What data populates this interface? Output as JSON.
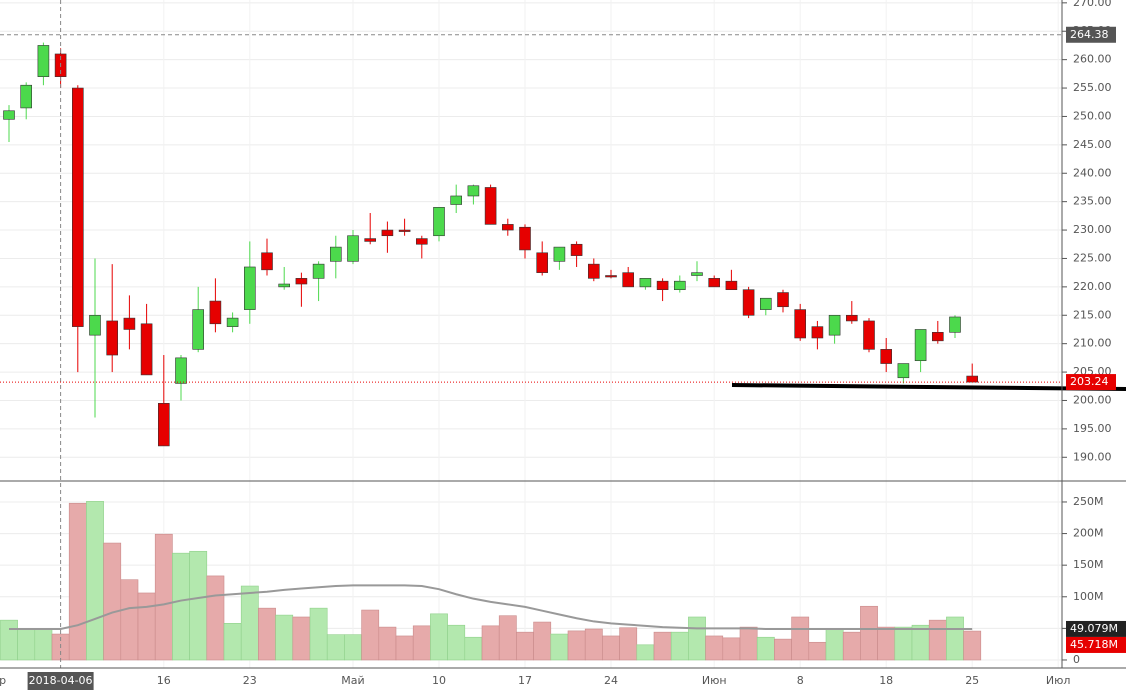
{
  "chart_data": {
    "type": "candlestick",
    "x_labels": [
      {
        "value": -0.8,
        "label": "Апр"
      },
      {
        "value": 9,
        "label": "16"
      },
      {
        "value": 14,
        "label": "23"
      },
      {
        "value": 20,
        "label": "Май"
      },
      {
        "value": 25,
        "label": "10"
      },
      {
        "value": 30,
        "label": "17"
      },
      {
        "value": 35,
        "label": "24"
      },
      {
        "value": 41,
        "label": "Июн"
      },
      {
        "value": 46,
        "label": "8"
      },
      {
        "value": 51,
        "label": "18"
      },
      {
        "value": 56,
        "label": "25"
      },
      {
        "value": 61,
        "label": "Июл"
      }
    ],
    "open": [
      249.5,
      251.5,
      257,
      261,
      255,
      211.5,
      214,
      214.5,
      213.5,
      199.5,
      203,
      209,
      217.5,
      213,
      216,
      226,
      220,
      221.5,
      221.5,
      224.5,
      224.5,
      228.5,
      230,
      230,
      228.5,
      229,
      234.5,
      236,
      237.5,
      231,
      230.5,
      226,
      224.5,
      227.5,
      224,
      222,
      222.5,
      220,
      221,
      219.5,
      222,
      221.5,
      221,
      219.5,
      216,
      219,
      216,
      213,
      211.5,
      215,
      214,
      209,
      204,
      207,
      212,
      212,
      204.3
    ],
    "high": [
      252,
      256,
      263,
      262,
      255.5,
      225,
      224,
      218.5,
      217,
      208,
      208,
      220,
      221.5,
      215.5,
      228,
      228.5,
      223.5,
      222.5,
      224.5,
      229,
      230,
      233,
      231.5,
      232,
      229,
      234,
      238,
      238,
      238,
      232,
      231,
      228,
      227,
      228,
      225,
      223,
      223.5,
      221.5,
      221.5,
      222,
      224.5,
      222,
      223,
      220,
      218,
      219.5,
      217,
      214,
      215,
      217.5,
      214.5,
      211,
      206.5,
      212.5,
      214,
      215,
      206.5
    ],
    "low": [
      245.5,
      249.5,
      255.5,
      255,
      205,
      197,
      205,
      209,
      204.5,
      192,
      200,
      208.5,
      212,
      212,
      213.5,
      222,
      219.5,
      216.5,
      217.5,
      221.5,
      224,
      227.5,
      226,
      229,
      225,
      228,
      233,
      234.5,
      231,
      229,
      225,
      222,
      223,
      223.5,
      221,
      221.5,
      220,
      219.5,
      217.5,
      219,
      221,
      220,
      219.5,
      214.5,
      215,
      215.5,
      210.5,
      209,
      210,
      213.5,
      208.5,
      205,
      203,
      205,
      210,
      211,
      203.24
    ],
    "close": [
      251,
      255.5,
      262.5,
      257,
      213,
      215,
      208,
      212.5,
      204.5,
      192,
      207.5,
      216,
      213.5,
      214.5,
      223.5,
      223,
      220.5,
      220.5,
      224,
      227,
      229,
      228,
      229,
      229.8,
      227.5,
      234,
      236,
      237.8,
      231,
      230,
      226.5,
      222.5,
      227,
      225.5,
      221.5,
      221.8,
      220,
      221.5,
      219.5,
      221,
      222.5,
      220,
      219.5,
      215,
      218,
      216.5,
      211,
      211,
      215,
      214,
      209,
      206.5,
      206.5,
      212.5,
      210.5,
      214.7,
      203.24
    ],
    "up_color": "#4cd94c",
    "down_color": "#e60000",
    "ylim": [
      186,
      270.5
    ],
    "yticks": [
      {
        "value": 190,
        "label": "190.00"
      },
      {
        "value": 195,
        "label": "195.00"
      },
      {
        "value": 200,
        "label": "200.00"
      },
      {
        "value": 205,
        "label": "205.00"
      },
      {
        "value": 210,
        "label": "210.00"
      },
      {
        "value": 215,
        "label": "215.00"
      },
      {
        "value": 220,
        "label": "220.00"
      },
      {
        "value": 225,
        "label": "225.00"
      },
      {
        "value": 230,
        "label": "230.00"
      },
      {
        "value": 235,
        "label": "235.00"
      },
      {
        "value": 240,
        "label": "240.00"
      },
      {
        "value": 245,
        "label": "245.00"
      },
      {
        "value": 250,
        "label": "250.00"
      },
      {
        "value": 255,
        "label": "255.00"
      },
      {
        "value": 260,
        "label": "260.00"
      },
      {
        "value": 265,
        "label": "265.00"
      },
      {
        "value": 270,
        "label": "270.00"
      }
    ],
    "grid": true,
    "crosshair": {
      "index": 3,
      "label": "2018-04-06",
      "price": 264.38
    },
    "volume": {
      "values": [
        63,
        50,
        50,
        41,
        248,
        251,
        185,
        127,
        106,
        199,
        169,
        172,
        133,
        58,
        117,
        82,
        71,
        68,
        82,
        40,
        40,
        79,
        52,
        38,
        54,
        73,
        55,
        36,
        54,
        70,
        44,
        60,
        41,
        46,
        49,
        38,
        51,
        24,
        44,
        44,
        68,
        38,
        35,
        52,
        36,
        33,
        68,
        28,
        49,
        44,
        85,
        52,
        52,
        55,
        63,
        68,
        45.718
      ],
      "ma": [
        49,
        49,
        49,
        49,
        55,
        65,
        75,
        82,
        84,
        88,
        94,
        98,
        102,
        104,
        106,
        108,
        111,
        113,
        115,
        117,
        118,
        118,
        118,
        118,
        117,
        112,
        104,
        97,
        92,
        88,
        84,
        78,
        72,
        66,
        61,
        58,
        56,
        54,
        52,
        51,
        50,
        50,
        50,
        50,
        49,
        49,
        49,
        49,
        49,
        49,
        49,
        49,
        49,
        49,
        49,
        49,
        49.079
      ],
      "ylim": [
        -12.7,
        281.6
      ],
      "yticks": [
        0,
        {
          "value": 50,
          "label": "50M"
        },
        {
          "value": 100,
          "label": "100M"
        },
        {
          "value": 150,
          "label": "150M"
        },
        {
          "value": 200,
          "label": "200M"
        },
        {
          "value": 250,
          "label": "250M"
        }
      ],
      "up_color": "#b3e8ae",
      "down_color": "#e6aaaa",
      "ma_color": "#999999",
      "last_label": "45.718M",
      "ma_last_label": "49.079M"
    }
  }
}
